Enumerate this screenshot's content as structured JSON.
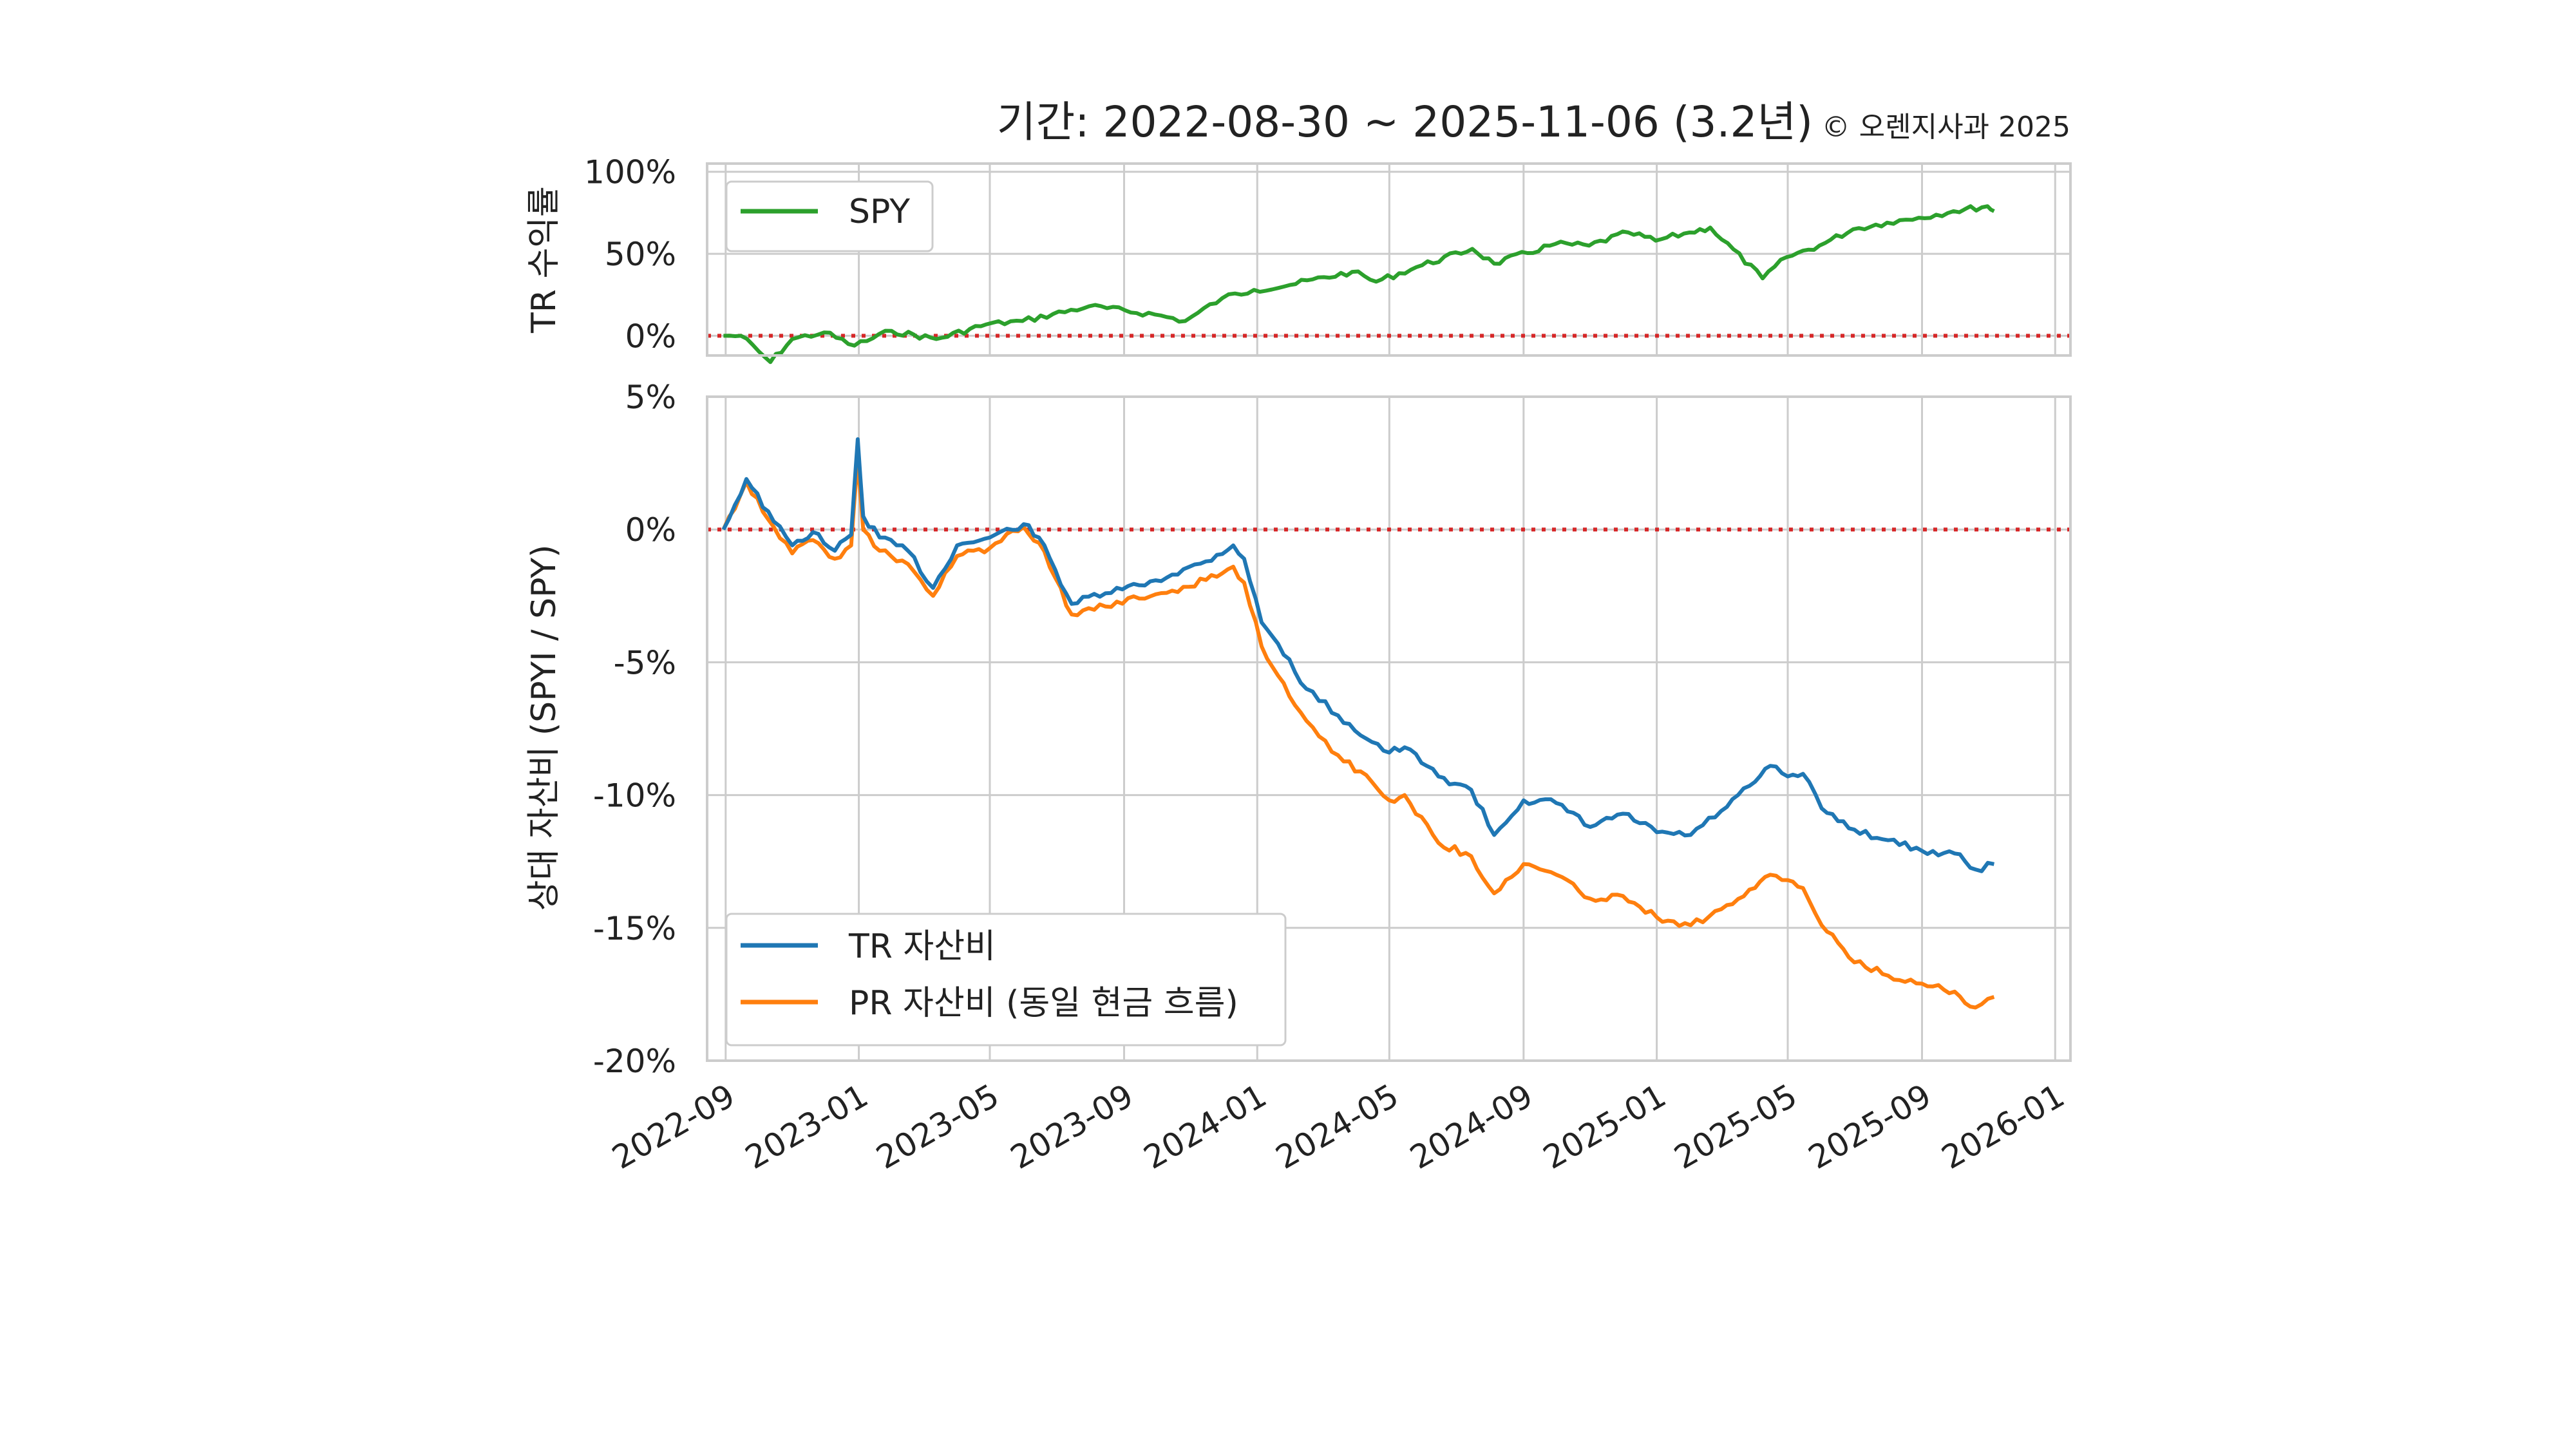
{
  "title": "기간: 2022-08-30 ~ 2025-11-06 (3.2년)",
  "credit": "© 오렌지사과 2025",
  "colors": {
    "spy": "#2ca02c",
    "tr": "#1f77b4",
    "pr": "#ff7f0e",
    "zero": "#d62728",
    "grid": "#cccccc",
    "frame": "#cccccc"
  },
  "x_ticks": [
    "2022-09",
    "2023-01",
    "2023-05",
    "2023-09",
    "2024-01",
    "2024-05",
    "2024-09",
    "2025-01",
    "2025-05",
    "2025-09",
    "2026-01"
  ],
  "chart_data": [
    {
      "type": "line",
      "ylabel": "TR 수익률",
      "ylim": [
        -0.12,
        1.05
      ],
      "yticks": [
        "100%",
        "50%",
        "0%"
      ],
      "grid": true,
      "legend": {
        "placement": "top-left",
        "entries": [
          "SPY"
        ]
      },
      "series": [
        {
          "name": "SPY",
          "x": [
            "2022-08-30",
            "2022-09-15",
            "2022-10-12",
            "2022-11-01",
            "2022-11-30",
            "2022-12-28",
            "2023-01-31",
            "2023-03-13",
            "2023-04-28",
            "2023-05-31",
            "2023-07-31",
            "2023-09-29",
            "2023-10-27",
            "2023-11-30",
            "2023-12-29",
            "2024-01-31",
            "2024-03-28",
            "2024-04-19",
            "2024-05-31",
            "2024-07-16",
            "2024-08-05",
            "2024-09-30",
            "2024-10-31",
            "2024-12-06",
            "2024-12-31",
            "2025-01-31",
            "2025-02-19",
            "2025-04-08",
            "2025-04-30",
            "2025-05-30",
            "2025-06-30",
            "2025-07-31",
            "2025-08-29",
            "2025-09-30",
            "2025-10-31",
            "2025-11-06"
          ],
          "values": [
            0.0,
            0.0,
            -0.16,
            -0.02,
            0.02,
            -0.06,
            0.03,
            -0.02,
            0.07,
            0.09,
            0.18,
            0.13,
            0.09,
            0.23,
            0.28,
            0.31,
            0.39,
            0.33,
            0.43,
            0.53,
            0.44,
            0.56,
            0.55,
            0.63,
            0.58,
            0.63,
            0.66,
            0.35,
            0.48,
            0.55,
            0.65,
            0.69,
            0.72,
            0.76,
            0.79,
            0.76
          ]
        }
      ]
    },
    {
      "type": "line",
      "ylabel": "상대 자산비 (SPYI / SPY)",
      "ylim": [
        -20,
        5
      ],
      "yticks": [
        "5%",
        "0%",
        "-5%",
        "-10%",
        "-15%",
        "-20%"
      ],
      "grid": true,
      "legend": {
        "placement": "bottom-left",
        "entries": [
          "TR 자산비",
          "PR 자산비 (동일 현금 흐름)"
        ]
      },
      "series": [
        {
          "name": "TR 자산비",
          "x": [
            "2022-08-30",
            "2022-09-20",
            "2022-10-15",
            "2022-11-01",
            "2022-11-20",
            "2022-12-10",
            "2022-12-25",
            "2022-12-31",
            "2023-01-05",
            "2023-01-20",
            "2023-02-15",
            "2023-03-10",
            "2023-04-01",
            "2023-05-01",
            "2023-06-01",
            "2023-06-15",
            "2023-07-15",
            "2023-08-15",
            "2023-09-15",
            "2023-10-15",
            "2023-11-15",
            "2023-12-10",
            "2023-12-20",
            "2024-01-05",
            "2024-01-20",
            "2024-02-15",
            "2024-03-15",
            "2024-04-15",
            "2024-05-01",
            "2024-05-15",
            "2024-06-15",
            "2024-07-15",
            "2024-08-05",
            "2024-09-01",
            "2024-10-01",
            "2024-11-01",
            "2024-12-01",
            "2025-01-01",
            "2025-02-01",
            "2025-03-01",
            "2025-04-01",
            "2025-04-15",
            "2025-05-01",
            "2025-05-15",
            "2025-06-01",
            "2025-07-01",
            "2025-08-01",
            "2025-09-01",
            "2025-10-01",
            "2025-10-20",
            "2025-11-06"
          ],
          "values": [
            0.0,
            1.9,
            0.3,
            -0.6,
            -0.1,
            -0.8,
            -0.2,
            3.4,
            0.5,
            -0.3,
            -0.8,
            -2.2,
            -0.6,
            -0.3,
            0.2,
            -0.3,
            -2.8,
            -2.4,
            -2.1,
            -1.7,
            -1.2,
            -0.6,
            -1.1,
            -3.5,
            -4.3,
            -6.0,
            -7.0,
            -8.0,
            -8.4,
            -8.2,
            -9.3,
            -9.8,
            -11.5,
            -10.2,
            -10.3,
            -11.2,
            -10.7,
            -11.4,
            -11.5,
            -10.6,
            -9.5,
            -8.9,
            -9.3,
            -9.2,
            -10.5,
            -11.3,
            -11.7,
            -12.1,
            -12.2,
            -12.8,
            -12.6
          ]
        },
        {
          "name": "PR 자산비 (동일 현금 흐름)",
          "x": [
            "2022-08-30",
            "2022-09-20",
            "2022-10-15",
            "2022-11-01",
            "2022-11-20",
            "2022-12-10",
            "2022-12-25",
            "2022-12-31",
            "2023-01-05",
            "2023-01-20",
            "2023-02-15",
            "2023-03-10",
            "2023-04-01",
            "2023-05-01",
            "2023-06-01",
            "2023-06-15",
            "2023-07-15",
            "2023-08-15",
            "2023-09-15",
            "2023-10-15",
            "2023-11-15",
            "2023-12-10",
            "2023-12-20",
            "2024-01-05",
            "2024-01-20",
            "2024-02-15",
            "2024-03-15",
            "2024-04-15",
            "2024-05-01",
            "2024-05-15",
            "2024-06-15",
            "2024-07-15",
            "2024-08-05",
            "2024-09-01",
            "2024-10-01",
            "2024-11-01",
            "2024-12-01",
            "2025-01-01",
            "2025-02-01",
            "2025-03-01",
            "2025-04-01",
            "2025-04-15",
            "2025-05-01",
            "2025-05-15",
            "2025-06-01",
            "2025-07-01",
            "2025-08-01",
            "2025-09-01",
            "2025-10-01",
            "2025-10-20",
            "2025-11-06"
          ],
          "values": [
            0.0,
            1.8,
            0.1,
            -0.9,
            -0.4,
            -1.1,
            -0.6,
            2.6,
            0.0,
            -0.8,
            -1.3,
            -2.5,
            -1.0,
            -0.7,
            0.1,
            -0.5,
            -3.2,
            -2.9,
            -2.6,
            -2.3,
            -1.9,
            -1.4,
            -2.0,
            -4.4,
            -5.5,
            -7.2,
            -8.5,
            -9.5,
            -10.2,
            -10.0,
            -11.8,
            -12.3,
            -13.7,
            -12.6,
            -13.0,
            -13.9,
            -13.8,
            -14.6,
            -14.9,
            -14.3,
            -13.5,
            -13.0,
            -13.2,
            -13.5,
            -14.9,
            -16.3,
            -16.8,
            -17.1,
            -17.4,
            -18.0,
            -17.6
          ]
        }
      ]
    }
  ]
}
